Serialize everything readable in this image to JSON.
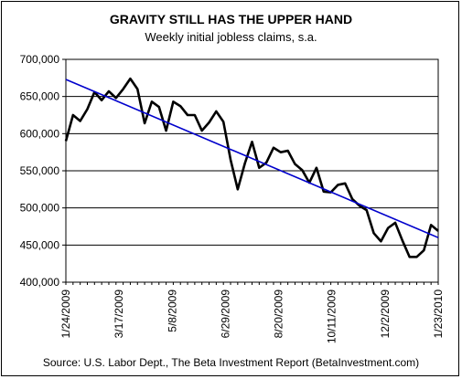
{
  "chart_data": {
    "type": "line",
    "title": "GRAVITY STILL HAS THE UPPER HAND",
    "subtitle": "Weekly initial jobless claims, s.a.",
    "source": "Source: U.S. Labor Dept., The Beta Investment Report (BetaInvestment.com)",
    "ylim": [
      400000,
      700000
    ],
    "y_ticks": [
      400000,
      450000,
      500000,
      550000,
      600000,
      650000,
      700000
    ],
    "y_tick_labels": [
      "400,000",
      "450,000",
      "500,000",
      "550,000",
      "600,000",
      "650,000",
      "700,000"
    ],
    "x_tick_labels": [
      "1/24/2009",
      "3/17/2009",
      "5/8/2009",
      "6/29/2009",
      "8/20/2009",
      "10/11/2009",
      "12/2/2009",
      "1/23/2010"
    ],
    "x_tick_weeks": [
      0,
      7.43,
      14.86,
      22.29,
      29.71,
      37.14,
      44.57,
      52
    ],
    "grid": "horizontal",
    "legend": "none",
    "colors": {
      "series": "#000000",
      "trend": "#0000cc"
    },
    "series": [
      {
        "values": [
          590000,
          625000,
          617000,
          633000,
          656000,
          645000,
          657000,
          648000,
          660000,
          674000,
          660000,
          614000,
          643000,
          636000,
          604000,
          643000,
          637000,
          625000,
          625000,
          604000,
          615000,
          630000,
          616000,
          565000,
          525000,
          560000,
          589000,
          554000,
          561000,
          581000,
          575000,
          577000,
          559000,
          551000,
          534000,
          554000,
          522000,
          521000,
          531000,
          533000,
          512000,
          503000,
          497000,
          466000,
          455000,
          473000,
          480000,
          456000,
          434000,
          434000,
          443000,
          477000,
          469000
        ]
      }
    ],
    "trendline": {
      "start": 673000,
      "end": 460000
    }
  }
}
